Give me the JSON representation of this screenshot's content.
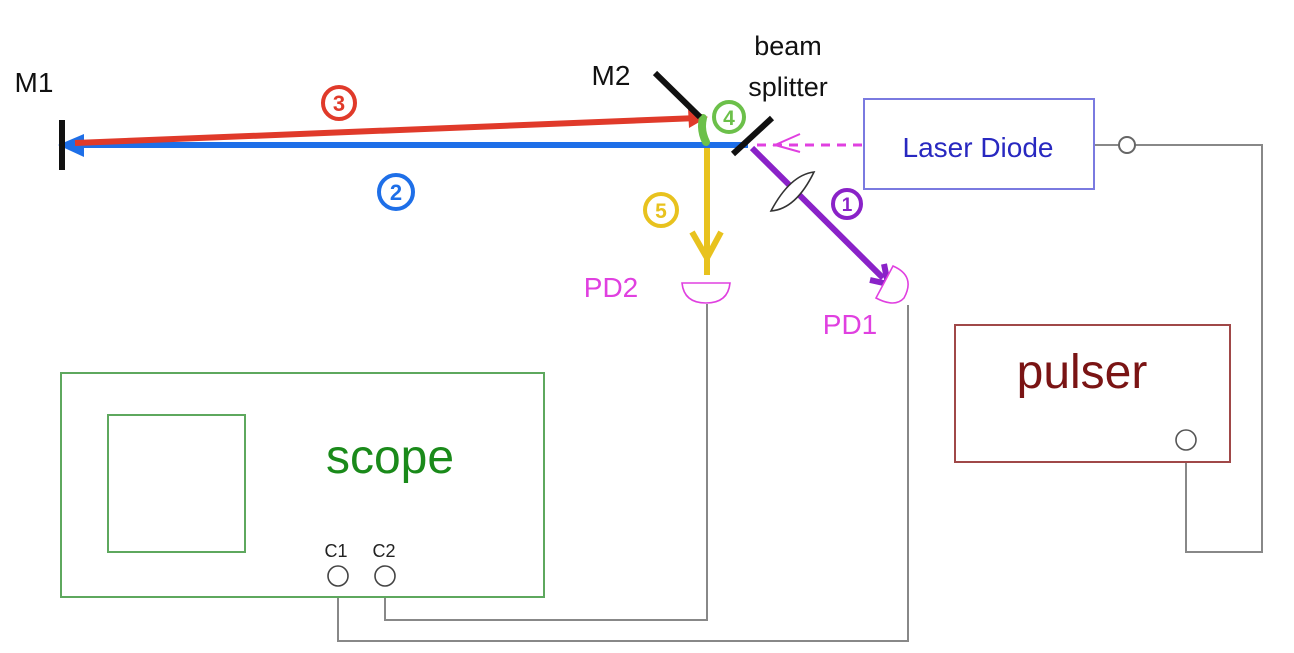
{
  "labels": {
    "m1": "M1",
    "m2": "M2",
    "beam_splitter_line1": "beam",
    "beam_splitter_line2": "splitter",
    "laser_diode": "Laser Diode",
    "pd1": "PD1",
    "pd2": "PD2",
    "scope": "scope",
    "c1": "C1",
    "c2": "C2",
    "pulser": "pulser"
  },
  "beam_steps": {
    "step1": "1",
    "step2": "2",
    "step3": "3",
    "step4": "4",
    "step5": "5"
  },
  "colors": {
    "step1_purple": "#8a22c8",
    "step2_blue": "#1e6fe8",
    "step3_red": "#e03a2a",
    "step4_green": "#6cc04a",
    "step5_yellow": "#e8c21e",
    "laser_magenta": "#e040e0",
    "laser_box_border": "#7a7ae0",
    "laser_text": "#2828c0",
    "scope_border": "#5ea85e",
    "scope_text": "#1a8a1a",
    "pulser_border": "#a04848",
    "pulser_text": "#7a1414",
    "pd_text": "#e040e0",
    "wire": "#888888"
  }
}
